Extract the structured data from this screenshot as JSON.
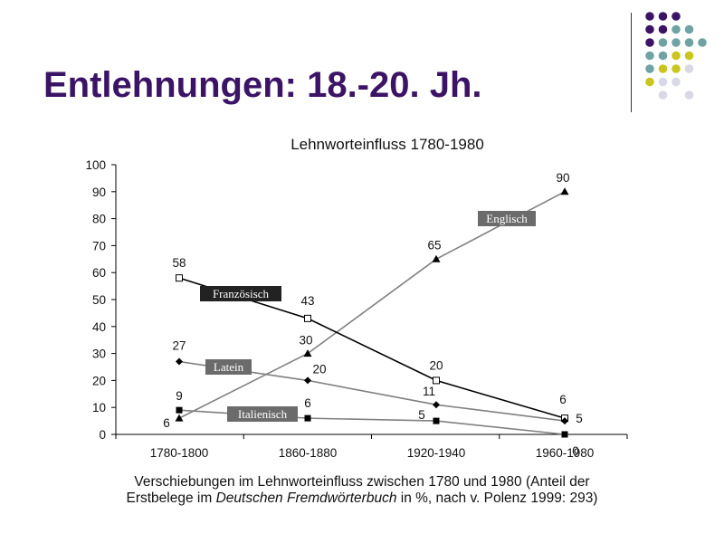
{
  "slide": {
    "title": "Entlehnungen: 18.-20. Jh.",
    "caption_line1": "Verschiebungen im Lehnworteinfluss zwischen 1780 und 1980 (Anteil der",
    "caption_line2_pre": "Erstbelege im ",
    "caption_line2_em": "Deutschen Fremdwörterbuch",
    "caption_line2_post": " in %, nach v. Polenz 1999: 293)"
  },
  "decor": {
    "dot_colors": [
      "#3b1466",
      "#6fa3a3",
      "#c8c61e",
      "#d8d8e6"
    ]
  },
  "chart_data": {
    "type": "line",
    "title": "Lehnworteinfluss 1780-1980",
    "categories": [
      "1780-1800",
      "1860-1880",
      "1920-1940",
      "1960-1980"
    ],
    "ylim": [
      0,
      100
    ],
    "yticks": [
      0,
      10,
      20,
      30,
      40,
      50,
      60,
      70,
      80,
      90,
      100
    ],
    "grid": false,
    "series": [
      {
        "name": "Englisch",
        "values": [
          6,
          30,
          65,
          90
        ],
        "marker": "triangle",
        "color": "#808080"
      },
      {
        "name": "Französisch",
        "values": [
          58,
          43,
          20,
          6
        ],
        "marker": "square-open",
        "color": "#000000"
      },
      {
        "name": "Latein",
        "values": [
          27,
          20,
          11,
          5
        ],
        "marker": "diamond",
        "color": "#808080"
      },
      {
        "name": "Italienisch",
        "values": [
          9,
          6,
          5,
          0
        ],
        "marker": "square-filled",
        "color": "#808080"
      }
    ]
  }
}
